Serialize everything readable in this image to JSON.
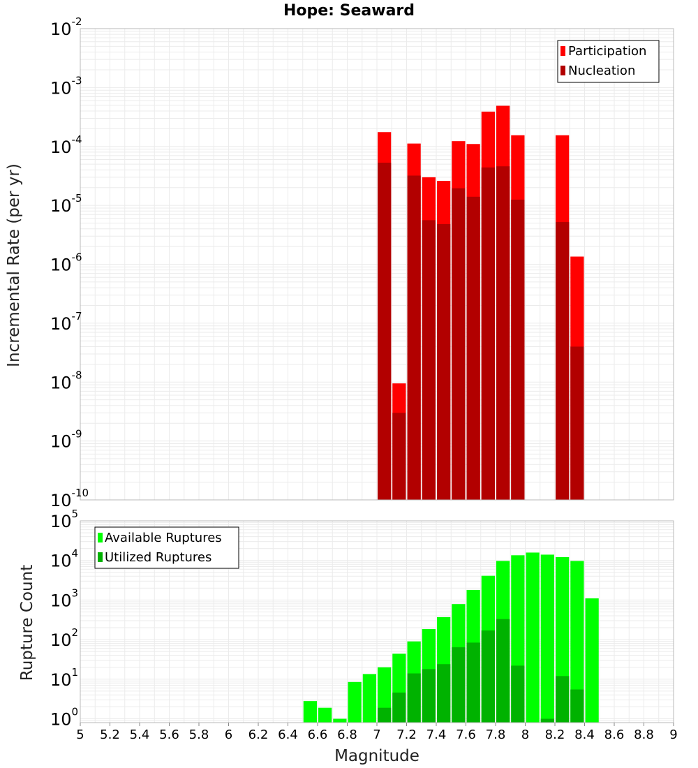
{
  "chart_data": [
    {
      "type": "bar",
      "title": "Hope: Seaward",
      "xlabel": "Magnitude",
      "ylabel": "Incremental Rate (per yr)",
      "yscale": "log",
      "xlim": [
        5,
        9
      ],
      "ylim": [
        1e-10,
        0.01
      ],
      "bin_width": 0.1,
      "grid": true,
      "legend_position": "top-right",
      "overlay": true,
      "x": [
        7.05,
        7.15,
        7.25,
        7.35,
        7.45,
        7.55,
        7.65,
        7.75,
        7.85,
        7.95,
        8.25,
        8.35
      ],
      "series": [
        {
          "name": "Participation",
          "color": "#ff0000",
          "values": [
            0.000175,
            9.5e-09,
            0.000112,
            3e-05,
            2.6e-05,
            0.000123,
            0.00011,
            0.00039,
            0.00049,
            0.000155,
            0.000155,
            1.35e-06
          ]
        },
        {
          "name": "Nucleation",
          "color": "#b20000",
          "values": [
            5.3e-05,
            3e-09,
            3.2e-05,
            5.6e-06,
            4.8e-06,
            1.95e-05,
            1.4e-05,
            4.4e-05,
            4.6e-05,
            1.25e-05,
            5.2e-06,
            4e-08
          ]
        }
      ]
    },
    {
      "type": "bar",
      "xlabel": "Magnitude",
      "ylabel": "Rupture Count",
      "yscale": "log",
      "xlim": [
        5,
        9
      ],
      "ylim": [
        0.8,
        100000.0
      ],
      "bin_width": 0.1,
      "grid": true,
      "legend_position": "top-left",
      "overlay": true,
      "x": [
        6.55,
        6.65,
        6.75,
        6.85,
        6.95,
        7.05,
        7.15,
        7.25,
        7.35,
        7.45,
        7.55,
        7.65,
        7.75,
        7.85,
        7.95,
        8.05,
        8.15,
        8.25,
        8.35,
        8.45
      ],
      "series": [
        {
          "name": "Available Ruptures",
          "color": "#00ff00",
          "values": [
            2.8,
            1.9,
            1.0,
            8.5,
            13.5,
            20,
            44,
            90,
            185,
            370,
            790,
            1800,
            4100,
            9700,
            13500,
            15800,
            14000,
            12100,
            9700,
            1100
          ]
        },
        {
          "name": "Utilized Ruptures",
          "color": "#00b200",
          "values": [
            null,
            null,
            null,
            null,
            null,
            1.9,
            4.6,
            14,
            18,
            24,
            64,
            84,
            170,
            330,
            22,
            null,
            1.0,
            12,
            5.5,
            null
          ]
        }
      ],
      "xticks": [
        "5",
        "5.2",
        "5.4",
        "5.6",
        "5.8",
        "6",
        "6.2",
        "6.4",
        "6.6",
        "6.8",
        "7",
        "7.2",
        "7.4",
        "7.6",
        "7.8",
        "8",
        "8.2",
        "8.4",
        "8.6",
        "8.8",
        "9"
      ]
    }
  ],
  "top_yticks": [
    {
      "base": "10",
      "exp": "-2"
    },
    {
      "base": "10",
      "exp": "-3"
    },
    {
      "base": "10",
      "exp": "-4"
    },
    {
      "base": "10",
      "exp": "-5"
    },
    {
      "base": "10",
      "exp": "-6"
    },
    {
      "base": "10",
      "exp": "-7"
    },
    {
      "base": "10",
      "exp": "-8"
    },
    {
      "base": "10",
      "exp": "-9"
    },
    {
      "base": "10",
      "exp": "-10"
    }
  ],
  "bottom_yticks": [
    {
      "base": "10",
      "exp": "0"
    },
    {
      "base": "10",
      "exp": "1"
    },
    {
      "base": "10",
      "exp": "2"
    },
    {
      "base": "10",
      "exp": "3"
    },
    {
      "base": "10",
      "exp": "4"
    },
    {
      "base": "10",
      "exp": "5"
    }
  ]
}
